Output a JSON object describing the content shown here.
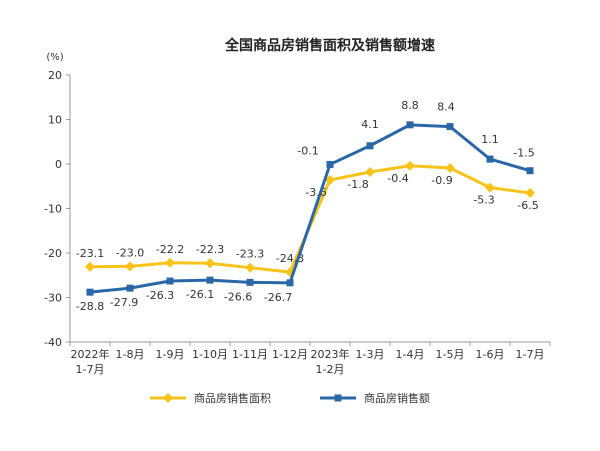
{
  "chart_data": {
    "type": "line",
    "title": "全国商品房销售面积及销售额增速",
    "yunit": "(%)",
    "ylim": [
      -40,
      20
    ],
    "yticks": [
      20,
      10,
      0,
      -10,
      -20,
      -30,
      -40
    ],
    "grid": false,
    "legend_position": "bottom",
    "categories": [
      [
        "2022年",
        "1-7月"
      ],
      [
        "1-8月"
      ],
      [
        "1-9月"
      ],
      [
        "1-10月"
      ],
      [
        "1-11月"
      ],
      [
        "1-12月"
      ],
      [
        "2023年",
        "1-2月"
      ],
      [
        "1-3月"
      ],
      [
        "1-4月"
      ],
      [
        "1-5月"
      ],
      [
        "1-6月"
      ],
      [
        "1-7月"
      ]
    ],
    "series": [
      {
        "name": "商品房销售面积",
        "color": "#f7c318",
        "marker": "diamond",
        "values": [
          -23.1,
          -23.0,
          -22.2,
          -22.3,
          -23.3,
          -24.3,
          -3.6,
          -1.8,
          -0.4,
          -0.9,
          -5.3,
          -6.5
        ],
        "labels": [
          "-23.1",
          "-23.0",
          "-22.2",
          "-22.3",
          "-23.3",
          "-24.3",
          "-3.6",
          "-1.8",
          "-0.4",
          "-0.9",
          "-5.3",
          "-6.5"
        ]
      },
      {
        "name": "商品房销售额",
        "color": "#2a67a6",
        "marker": "square",
        "values": [
          -28.8,
          -27.9,
          -26.3,
          -26.1,
          -26.6,
          -26.7,
          -0.1,
          4.1,
          8.8,
          8.4,
          1.1,
          -1.5
        ],
        "labels": [
          "-28.8",
          "-27.9",
          "-26.3",
          "-26.1",
          "-26.6",
          "-26.7",
          "-0.1",
          "4.1",
          "8.8",
          "8.4",
          "1.1",
          "-1.5"
        ]
      }
    ]
  }
}
